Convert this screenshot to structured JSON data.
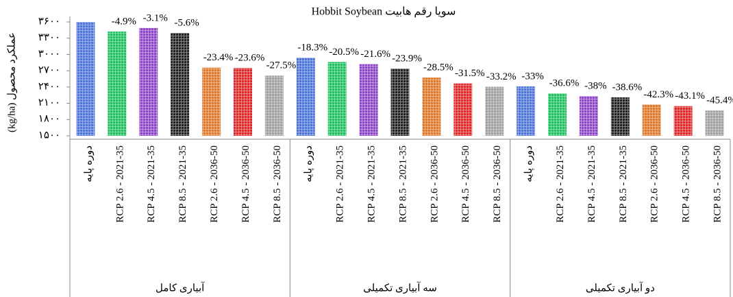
{
  "chart_data": {
    "type": "bar",
    "title": "سویا رقم هابیت Hobbit Soybean",
    "y_label": "عملکرد محصول (kg/ha)",
    "groups": [
      "آبیاری کامل",
      "سه آبیاری تکمیلی",
      "دو آبیاری تکمیلی"
    ],
    "categories": [
      "دوره پایه",
      "RCP 2.6 - 2021-35",
      "RCP 4.5 - 2021-35",
      "RCP 8.5 - 2021-35",
      "RCP 2.6 - 2036-50",
      "RCP 4.5 - 2036-50",
      "RCP 8.5 - 2036-50",
      "دوره پایه",
      "RCP 2.6 - 2021-35",
      "RCP 4.5 - 2021-35",
      "RCP 8.5 - 2021-35",
      "RCP 2.6 - 2036-50",
      "RCP 4.5 - 2036-50",
      "RCP 8.5 - 2036-50",
      "دوره پایه",
      "RCP 2.6 - 2021-35",
      "RCP 4.5 - 2021-35",
      "RCP 8.5 - 2021-35",
      "RCP 2.6 - 2036-50",
      "RCP 4.5 - 2036-50",
      "RCP 8.5 - 2036-50"
    ],
    "values": [
      3600,
      3424,
      3488,
      3398,
      2758,
      2750,
      2610,
      2941,
      2862,
      2822,
      2740,
      2574,
      2466,
      2405,
      2412,
      2282,
      2232,
      2210,
      2077,
      2048,
      1966
    ],
    "value_labels": [
      null,
      "-4.9%",
      "-3.1%",
      "-5.6%",
      "-23.4%",
      "-23.6%",
      "-27.5%",
      "-18.3%",
      "-20.5%",
      "-21.6%",
      "-23.9%",
      "-28.5%",
      "-31.5%",
      "-33.2%",
      "-33%",
      "-36.6%",
      "-38%",
      "-38.6%",
      "-42.3%",
      "-43.1%",
      "-45.4%"
    ],
    "colors": [
      "#4a72d8",
      "#1fc060",
      "#8e44c8",
      "#222222",
      "#e0782a",
      "#e02828",
      "#a0a0a0"
    ],
    "ylim": [
      1500,
      3600
    ],
    "yticks": [
      {
        "value": 1500,
        "label": "۱۵۰۰"
      },
      {
        "value": 1800,
        "label": "۱۸۰۰"
      },
      {
        "value": 2100,
        "label": "۲۱۰۰"
      },
      {
        "value": 2400,
        "label": "۲۴۰۰"
      },
      {
        "value": 2700,
        "label": "۲۷۰۰"
      },
      {
        "value": 3000,
        "label": "۳۰۰۰"
      },
      {
        "value": 3300,
        "label": "۳۳۰۰"
      },
      {
        "value": 3600,
        "label": "۳۶۰۰"
      }
    ],
    "grid": false
  }
}
